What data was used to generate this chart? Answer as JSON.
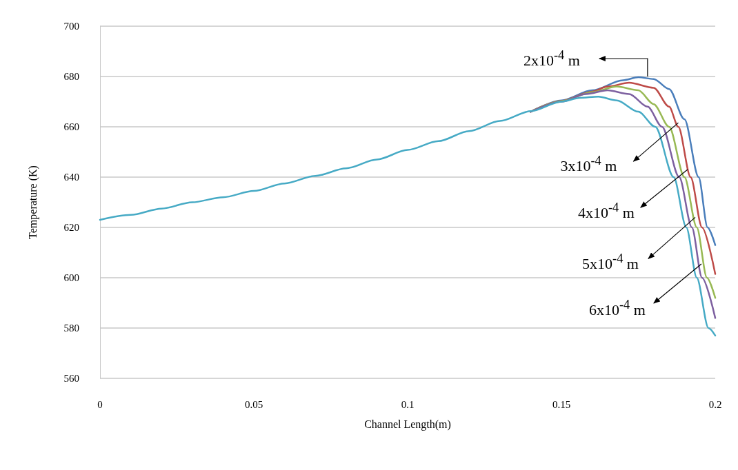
{
  "chart_data": {
    "type": "line",
    "xlabel": "Channel Length(m)",
    "ylabel": "Temperature (K)",
    "xlim": [
      0,
      0.2
    ],
    "xticks": [
      0,
      0.05,
      0.1,
      0.15,
      0.2
    ],
    "ylim": [
      560,
      700
    ],
    "yticks": [
      560,
      580,
      600,
      620,
      640,
      660,
      680,
      700
    ],
    "grid": "y",
    "marker": "none",
    "line_style": "solid",
    "series": [
      {
        "color": "#4a7ebb",
        "x": [
          0.14,
          0.15,
          0.16,
          0.17,
          0.175,
          0.18,
          0.185,
          0.19,
          0.1946,
          0.1975,
          0.2
        ],
        "values": [
          666,
          670.5,
          674.5,
          678.5,
          679.7,
          679,
          675,
          663,
          640,
          620,
          613
        ]
      },
      {
        "color": "#be4b48",
        "x": [
          0.14,
          0.15,
          0.16,
          0.165,
          0.172,
          0.18,
          0.185,
          0.188,
          0.192,
          0.1957,
          0.2
        ],
        "values": [
          666,
          670.3,
          674,
          676,
          677.5,
          675.5,
          668,
          660,
          640,
          620,
          601.5
        ]
      },
      {
        "color": "#98b954",
        "x": [
          0.14,
          0.15,
          0.16,
          0.168,
          0.175,
          0.18,
          0.185,
          0.19,
          0.194,
          0.1973,
          0.2
        ],
        "values": [
          666,
          670.2,
          673.8,
          676,
          674.5,
          669,
          660,
          640,
          620,
          600,
          592
        ]
      },
      {
        "color": "#7d60a0",
        "x": [
          0.14,
          0.15,
          0.158,
          0.165,
          0.172,
          0.178,
          0.1827,
          0.1883,
          0.1924,
          0.1957,
          0.2
        ],
        "values": [
          666,
          670,
          673,
          674.5,
          673,
          668,
          660,
          640,
          620,
          600,
          584
        ]
      },
      {
        "color": "#46aac5",
        "x": [
          0,
          0.01,
          0.02,
          0.03,
          0.04,
          0.05,
          0.06,
          0.07,
          0.08,
          0.09,
          0.1,
          0.11,
          0.12,
          0.13,
          0.14,
          0.15,
          0.156,
          0.162,
          0.168,
          0.175,
          0.1805,
          0.1865,
          0.1906,
          0.194,
          0.1978,
          0.2
        ],
        "values": [
          623,
          625,
          627.5,
          630,
          632,
          634.5,
          637.5,
          640.5,
          643.5,
          647,
          650.8,
          654.3,
          658.3,
          662.3,
          666.2,
          670,
          671.5,
          672,
          670.5,
          666,
          660,
          640,
          620,
          600,
          580,
          577
        ]
      }
    ],
    "annotations": [
      {
        "text": "2x10$^{-4}$ m",
        "x": 0.178,
        "y": 680
      },
      {
        "text": "3x10$^{-4}$ m",
        "x": 0.188,
        "y": 661.6
      },
      {
        "text": "4x10$^{-4}$ m",
        "x": 0.191,
        "y": 643
      },
      {
        "text": "5x10$^{-4}$ m",
        "x": 0.1935,
        "y": 624
      },
      {
        "text": "6x10$^{-4}$ m",
        "x": 0.1955,
        "y": 605.5
      }
    ]
  }
}
